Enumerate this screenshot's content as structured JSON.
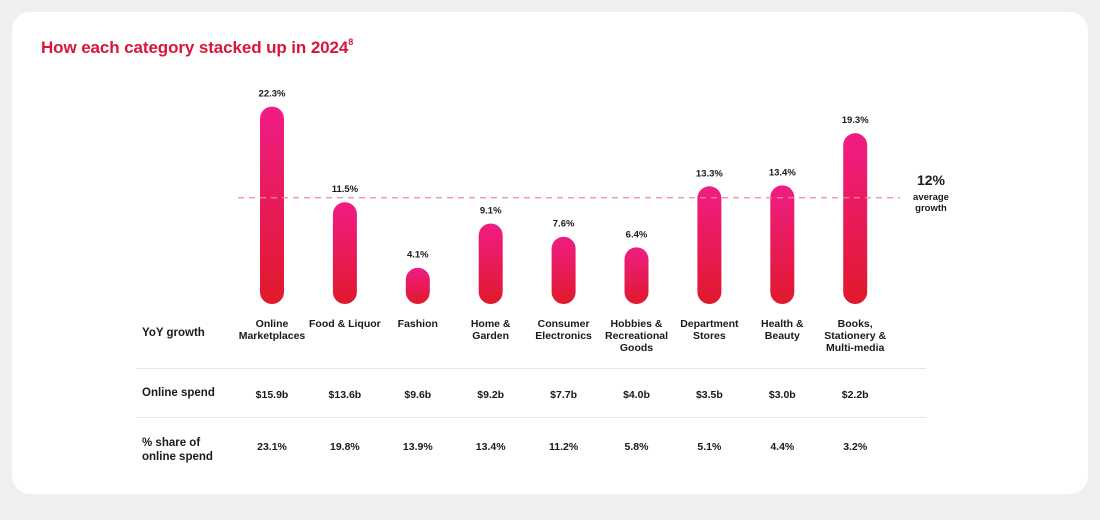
{
  "title": "How each category stacked up in 2024",
  "title_footnote": "8",
  "colors": {
    "accent": "#d9163a",
    "bar_top": "#f01c85",
    "bar_bottom": "#e01a2c",
    "reference_line": "#f08a9a"
  },
  "rows": {
    "yoy_label": "YoY growth",
    "spend_label": "Online spend",
    "share_label": "% share of\nonline spend"
  },
  "average": {
    "value_label": "12%",
    "text": "average\ngrowth"
  },
  "chart_data": {
    "type": "bar",
    "categories": [
      "Online\nMarketplaces",
      "Food & Liquor",
      "Fashion",
      "Home &\nGarden",
      "Consumer\nElectronics",
      "Hobbies &\nRecreational\nGoods",
      "Department\nStores",
      "Health &\nBeauty",
      "Books,\nStationery &\nMulti-media"
    ],
    "values": [
      22.3,
      11.5,
      4.1,
      9.1,
      7.6,
      6.4,
      13.3,
      13.4,
      19.3
    ],
    "value_labels": [
      "22.3%",
      "11.5%",
      "4.1%",
      "9.1%",
      "7.6%",
      "6.4%",
      "13.3%",
      "13.4%",
      "19.3%"
    ],
    "reference_line": 12,
    "online_spend": [
      "$15.9b",
      "$13.6b",
      "$9.6b",
      "$9.2b",
      "$7.7b",
      "$4.0b",
      "$3.5b",
      "$3.0b",
      "$2.2b"
    ],
    "share_of_spend": [
      "23.1%",
      "19.8%",
      "13.9%",
      "13.4%",
      "11.2%",
      "5.8%",
      "5.1%",
      "4.4%",
      "3.2%"
    ],
    "ylim": [
      0,
      23.5
    ],
    "grid": false
  }
}
